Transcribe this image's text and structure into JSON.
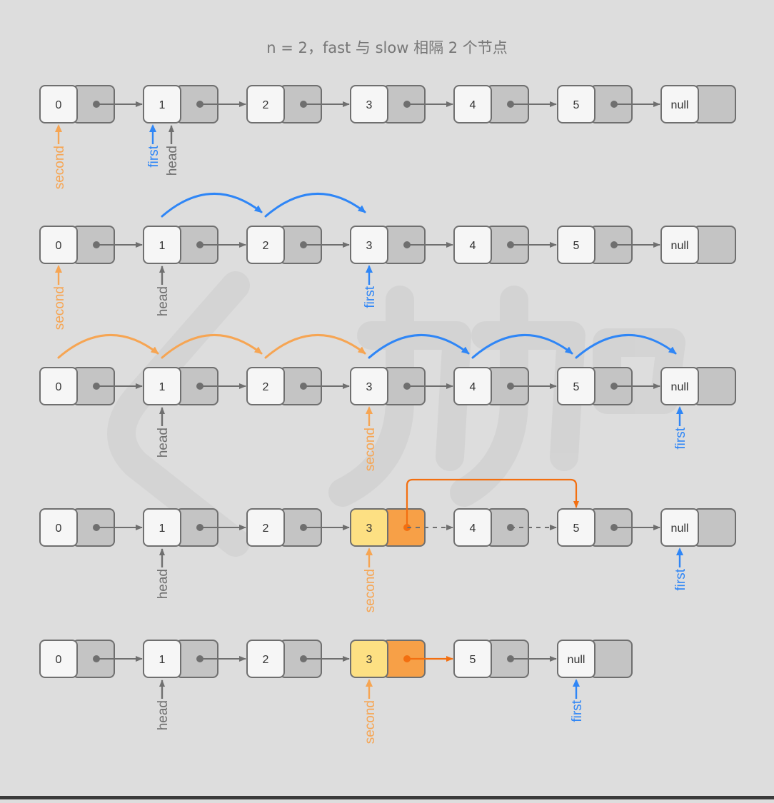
{
  "title": "n = 2，fast 与 slow 相隔 2 个节点",
  "colors": {
    "background": "#dddddd",
    "value_cell": "#f6f6f6",
    "pointer_cell": "#c4c4c4",
    "border": "#6f6f6f",
    "arrow": "#6f6f6f",
    "first": "#2f86f6",
    "second": "#f6a553",
    "head": "#6f6f6f",
    "highlight_value": "#fde083",
    "highlight_pointer": "#f7a047",
    "relink": "#f36f10",
    "watermark": "#d3d3d3"
  },
  "rows": [
    {
      "nodes": [
        "0",
        "1",
        "2",
        "3",
        "4",
        "5",
        "null"
      ],
      "links": [
        "solid",
        "solid",
        "solid",
        "solid",
        "solid",
        "solid"
      ],
      "pointers": [
        {
          "name": "second",
          "node": 0,
          "color": "second"
        },
        {
          "name": "first",
          "node": 1,
          "color": "first",
          "offset": -1
        },
        {
          "name": "head",
          "node": 1,
          "color": "head",
          "offset": 1
        }
      ],
      "jumps": []
    },
    {
      "nodes": [
        "0",
        "1",
        "2",
        "3",
        "4",
        "5",
        "null"
      ],
      "links": [
        "solid",
        "solid",
        "solid",
        "solid",
        "solid",
        "solid"
      ],
      "pointers": [
        {
          "name": "second",
          "node": 0,
          "color": "second"
        },
        {
          "name": "head",
          "node": 1,
          "color": "head"
        },
        {
          "name": "first",
          "node": 3,
          "color": "first"
        }
      ],
      "jumps": [
        {
          "from": 1,
          "to": 2,
          "color": "first"
        },
        {
          "from": 2,
          "to": 3,
          "color": "first"
        }
      ]
    },
    {
      "nodes": [
        "0",
        "1",
        "2",
        "3",
        "4",
        "5",
        "null"
      ],
      "links": [
        "solid",
        "solid",
        "solid",
        "solid",
        "solid",
        "solid"
      ],
      "pointers": [
        {
          "name": "head",
          "node": 1,
          "color": "head"
        },
        {
          "name": "second",
          "node": 3,
          "color": "second"
        },
        {
          "name": "first",
          "node": 6,
          "color": "first"
        }
      ],
      "jumps": [
        {
          "from": 0,
          "to": 1,
          "color": "second"
        },
        {
          "from": 1,
          "to": 2,
          "color": "second"
        },
        {
          "from": 2,
          "to": 3,
          "color": "second"
        },
        {
          "from": 3,
          "to": 4,
          "color": "first"
        },
        {
          "from": 4,
          "to": 5,
          "color": "first"
        },
        {
          "from": 5,
          "to": 6,
          "color": "first"
        }
      ]
    },
    {
      "nodes": [
        "0",
        "1",
        "2",
        "3",
        "4",
        "5",
        "null"
      ],
      "links": [
        "solid",
        "solid",
        "solid",
        "dashed",
        "dashed",
        "solid"
      ],
      "highlight": 3,
      "relink": {
        "from": 3,
        "to": 5
      },
      "pointers": [
        {
          "name": "head",
          "node": 1,
          "color": "head"
        },
        {
          "name": "second",
          "node": 3,
          "color": "second"
        },
        {
          "name": "first",
          "node": 6,
          "color": "first"
        }
      ],
      "jumps": []
    },
    {
      "nodes": [
        "0",
        "1",
        "2",
        "3",
        "5",
        "null"
      ],
      "links": [
        "solid",
        "solid",
        "solid",
        "relink",
        "solid"
      ],
      "highlight": 3,
      "pointers": [
        {
          "name": "head",
          "node": 1,
          "color": "head"
        },
        {
          "name": "second",
          "node": 3,
          "color": "second"
        },
        {
          "name": "first",
          "node": 5,
          "color": "first"
        }
      ],
      "jumps": []
    }
  ]
}
